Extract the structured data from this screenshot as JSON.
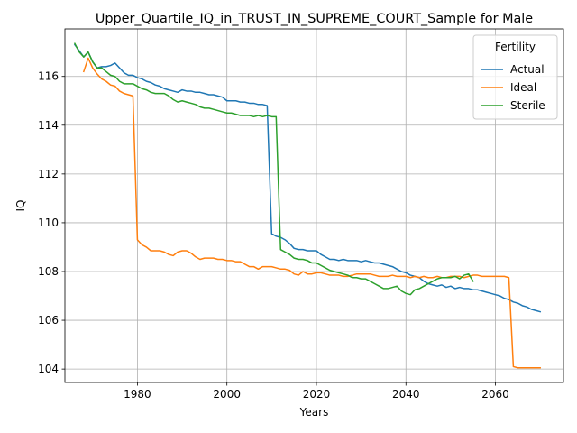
{
  "chart_data": {
    "type": "line",
    "title": "Upper_Quartile_IQ_in_TRUST_IN_SUPREME_COURT_Sample for Male",
    "xlabel": "Years",
    "ylabel": "IQ",
    "xlim": [
      1963.8,
      2075.2
    ],
    "ylim": [
      103.45,
      117.95
    ],
    "xticks": [
      1980,
      2000,
      2020,
      2040,
      2060
    ],
    "yticks": [
      104,
      106,
      108,
      110,
      112,
      114,
      116
    ],
    "grid": true,
    "legend": {
      "title": "Fertility",
      "position": "upper right"
    },
    "series": [
      {
        "name": "Actual",
        "color": "#1f77b4",
        "x": [
          1966,
          1968,
          1969,
          1970,
          1971,
          1972,
          1973,
          1974,
          1975,
          1976,
          1977,
          1978,
          1979,
          1980,
          1981,
          1982,
          1983,
          1984,
          1985,
          1986,
          1987,
          1988,
          1989,
          1990,
          1991,
          1992,
          1993,
          1994,
          1995,
          1996,
          1997,
          1998,
          1999,
          2000,
          2001,
          2002,
          2003,
          2004,
          2005,
          2006,
          2007,
          2008,
          2009,
          2010,
          2011,
          2012,
          2013,
          2014,
          2015,
          2016,
          2017,
          2018,
          2019,
          2020,
          2021,
          2022,
          2023,
          2024,
          2025,
          2026,
          2027,
          2028,
          2029,
          2030,
          2031,
          2032,
          2033,
          2034,
          2035,
          2036,
          2037,
          2038,
          2039,
          2040,
          2041,
          2042,
          2043,
          2044,
          2045,
          2046,
          2047,
          2048,
          2049,
          2050,
          2051,
          2052,
          2053,
          2054,
          2055,
          2056,
          2057,
          2058,
          2059,
          2060,
          2061,
          2062,
          2063,
          2064,
          2065,
          2066,
          2067,
          2068,
          2069,
          2070
        ],
        "values": [
          117.3,
          116.8,
          117.0,
          116.6,
          116.35,
          116.4,
          116.4,
          116.45,
          116.55,
          116.35,
          116.15,
          116.05,
          116.05,
          115.95,
          115.9,
          115.8,
          115.75,
          115.65,
          115.6,
          115.5,
          115.45,
          115.4,
          115.35,
          115.45,
          115.4,
          115.4,
          115.35,
          115.35,
          115.3,
          115.25,
          115.25,
          115.2,
          115.15,
          115.0,
          115.0,
          115.0,
          114.95,
          114.95,
          114.9,
          114.9,
          114.85,
          114.85,
          114.8,
          109.55,
          109.45,
          109.4,
          109.3,
          109.15,
          108.95,
          108.9,
          108.9,
          108.85,
          108.85,
          108.85,
          108.7,
          108.6,
          108.5,
          108.5,
          108.45,
          108.5,
          108.45,
          108.45,
          108.45,
          108.4,
          108.45,
          108.4,
          108.35,
          108.35,
          108.3,
          108.25,
          108.2,
          108.1,
          108.0,
          107.95,
          107.85,
          107.8,
          107.75,
          107.6,
          107.5,
          107.45,
          107.4,
          107.45,
          107.35,
          107.4,
          107.3,
          107.35,
          107.3,
          107.3,
          107.25,
          107.25,
          107.2,
          107.15,
          107.1,
          107.05,
          107.0,
          106.9,
          106.85,
          106.75,
          106.7,
          106.6,
          106.55,
          106.45,
          106.4,
          106.35
        ]
      },
      {
        "name": "Ideal",
        "color": "#ff7f0e",
        "x": [
          1968,
          1969,
          1970,
          1971,
          1972,
          1973,
          1974,
          1975,
          1976,
          1977,
          1978,
          1979,
          1980,
          1981,
          1982,
          1983,
          1984,
          1985,
          1986,
          1987,
          1988,
          1989,
          1990,
          1991,
          1992,
          1993,
          1994,
          1995,
          1996,
          1997,
          1998,
          1999,
          2000,
          2001,
          2002,
          2003,
          2004,
          2005,
          2006,
          2007,
          2008,
          2009,
          2010,
          2011,
          2012,
          2013,
          2014,
          2015,
          2016,
          2017,
          2018,
          2019,
          2020,
          2021,
          2022,
          2023,
          2024,
          2025,
          2026,
          2027,
          2028,
          2029,
          2030,
          2031,
          2032,
          2033,
          2034,
          2035,
          2036,
          2037,
          2038,
          2039,
          2040,
          2041,
          2042,
          2043,
          2044,
          2045,
          2046,
          2047,
          2048,
          2049,
          2050,
          2051,
          2052,
          2053,
          2054,
          2055,
          2056,
          2057,
          2058,
          2059,
          2060,
          2061,
          2062,
          2063,
          2064,
          2065,
          2066,
          2067,
          2068,
          2069,
          2070
        ],
        "values": [
          116.2,
          116.75,
          116.35,
          116.1,
          115.9,
          115.8,
          115.65,
          115.6,
          115.4,
          115.3,
          115.25,
          115.2,
          109.3,
          109.1,
          109.0,
          108.85,
          108.85,
          108.85,
          108.8,
          108.7,
          108.65,
          108.8,
          108.85,
          108.85,
          108.75,
          108.6,
          108.5,
          108.55,
          108.55,
          108.55,
          108.5,
          108.5,
          108.45,
          108.45,
          108.4,
          108.4,
          108.3,
          108.2,
          108.2,
          108.1,
          108.2,
          108.2,
          108.2,
          108.15,
          108.1,
          108.1,
          108.05,
          107.9,
          107.85,
          108.0,
          107.9,
          107.9,
          107.95,
          107.95,
          107.9,
          107.85,
          107.85,
          107.85,
          107.8,
          107.8,
          107.85,
          107.9,
          107.9,
          107.9,
          107.9,
          107.85,
          107.8,
          107.8,
          107.8,
          107.85,
          107.8,
          107.8,
          107.8,
          107.75,
          107.8,
          107.75,
          107.8,
          107.75,
          107.75,
          107.8,
          107.75,
          107.75,
          107.8,
          107.8,
          107.8,
          107.75,
          107.8,
          107.85,
          107.85,
          107.8,
          107.8,
          107.8,
          107.8,
          107.8,
          107.8,
          107.75,
          104.1,
          104.05,
          104.05,
          104.05,
          104.05,
          104.05,
          104.05
        ],
        "values_note": ""
      },
      {
        "name": "Sterile",
        "color": "#2ca02c",
        "x": [
          1966,
          1967,
          1968,
          1969,
          1970,
          1971,
          1972,
          1973,
          1974,
          1975,
          1976,
          1977,
          1978,
          1979,
          1980,
          1981,
          1982,
          1983,
          1984,
          1985,
          1986,
          1987,
          1988,
          1989,
          1990,
          1991,
          1992,
          1993,
          1994,
          1995,
          1996,
          1997,
          1998,
          1999,
          2000,
          2001,
          2002,
          2003,
          2004,
          2005,
          2006,
          2007,
          2008,
          2009,
          2010,
          2011,
          2012,
          2013,
          2014,
          2015,
          2016,
          2017,
          2018,
          2019,
          2020,
          2021,
          2022,
          2023,
          2024,
          2025,
          2026,
          2027,
          2028,
          2029,
          2030,
          2031,
          2032,
          2033,
          2034,
          2035,
          2036,
          2037,
          2038,
          2039,
          2040,
          2041,
          2042,
          2043,
          2044,
          2045,
          2046,
          2047,
          2048,
          2049,
          2050,
          2051,
          2052,
          2053,
          2054,
          2055
        ],
        "values": [
          117.35,
          117.0,
          116.8,
          117.0,
          116.6,
          116.35,
          116.35,
          116.2,
          116.05,
          116.0,
          115.8,
          115.7,
          115.7,
          115.7,
          115.6,
          115.5,
          115.45,
          115.35,
          115.3,
          115.3,
          115.3,
          115.2,
          115.05,
          114.95,
          115.0,
          114.95,
          114.9,
          114.85,
          114.75,
          114.7,
          114.7,
          114.65,
          114.6,
          114.55,
          114.5,
          114.5,
          114.45,
          114.4,
          114.4,
          114.4,
          114.35,
          114.4,
          114.35,
          114.4,
          114.35,
          114.35,
          108.9,
          108.8,
          108.7,
          108.55,
          108.5,
          108.5,
          108.45,
          108.35,
          108.35,
          108.25,
          108.15,
          108.05,
          108.0,
          107.95,
          107.9,
          107.85,
          107.75,
          107.75,
          107.7,
          107.7,
          107.6,
          107.5,
          107.4,
          107.3,
          107.3,
          107.35,
          107.4,
          107.2,
          107.1,
          107.05,
          107.25,
          107.3,
          107.4,
          107.5,
          107.6,
          107.7,
          107.75,
          107.75,
          107.75,
          107.8,
          107.7,
          107.85,
          107.9,
          107.6
        ]
      }
    ]
  }
}
